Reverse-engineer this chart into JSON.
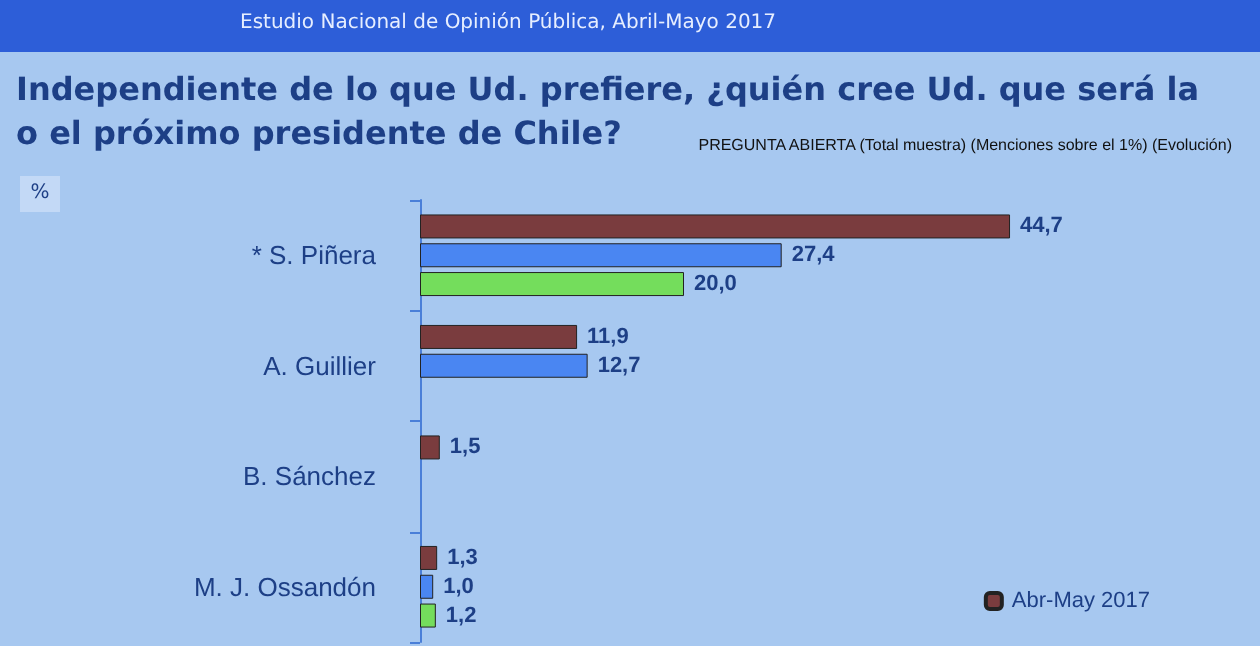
{
  "chart_data": {
    "type": "bar",
    "orientation": "horizontal",
    "title": "Independiente de lo que Ud. prefiere, ¿quién cree Ud. que será la o el próximo presidente de Chile?",
    "subtitle": "Estudio Nacional de Opinión Pública, Abril-Mayo 2017",
    "annotations": [
      "PREGUNTA ABIERTA (Total muestra) (Menciones sobre el 1%) (Evolución)",
      "%"
    ],
    "categories": [
      "* S. Piñera",
      "A. Guillier",
      "B. Sánchez",
      "M. J. Ossandón"
    ],
    "series": [
      {
        "name": "Abr-May 2017",
        "color": "#7a3c3e",
        "values": [
          44.7,
          11.9,
          1.5,
          1.3
        ],
        "value_labels": [
          "44,7",
          "11,9",
          "1,5",
          "1,3"
        ]
      },
      {
        "color": "#4a86f2",
        "values": [
          27.4,
          12.7,
          null,
          1.0
        ],
        "value_labels": [
          "27,4",
          "12,7",
          null,
          "1,0"
        ]
      },
      {
        "color": "#74dd5c",
        "values": [
          20.0,
          null,
          null,
          1.2
        ],
        "value_labels": [
          "20,0",
          null,
          null,
          "1,2"
        ]
      }
    ],
    "legend": "bottom right",
    "grid": false
  }
}
